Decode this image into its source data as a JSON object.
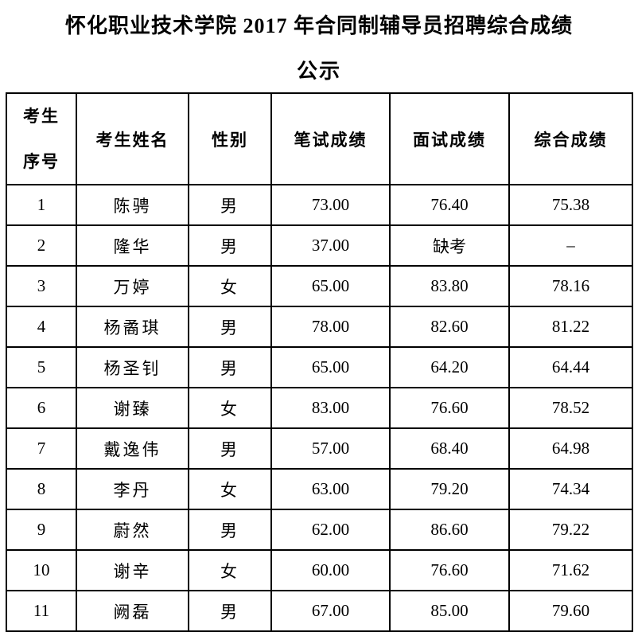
{
  "page": {
    "title_line1": "怀化职业技术学院 2017 年合同制辅导员招聘综合成绩",
    "title_line2": "公示"
  },
  "table": {
    "headers": {
      "seq": "考生\n序号",
      "name": "考生姓名",
      "gender": "性别",
      "written": "笔试成绩",
      "interview": "面试成绩",
      "overall": "综合成绩"
    },
    "rows": [
      {
        "seq": "1",
        "name": "陈骋",
        "gender": "男",
        "written": "73.00",
        "interview": "76.40",
        "overall": "75.38"
      },
      {
        "seq": "2",
        "name": "隆华",
        "gender": "男",
        "written": "37.00",
        "interview": "缺考",
        "overall": "–"
      },
      {
        "seq": "3",
        "name": "万婷",
        "gender": "女",
        "written": "65.00",
        "interview": "83.80",
        "overall": "78.16"
      },
      {
        "seq": "4",
        "name": "杨矞琪",
        "gender": "男",
        "written": "78.00",
        "interview": "82.60",
        "overall": "81.22"
      },
      {
        "seq": "5",
        "name": "杨圣钊",
        "gender": "男",
        "written": "65.00",
        "interview": "64.20",
        "overall": "64.44"
      },
      {
        "seq": "6",
        "name": "谢臻",
        "gender": "女",
        "written": "83.00",
        "interview": "76.60",
        "overall": "78.52"
      },
      {
        "seq": "7",
        "name": "戴逸伟",
        "gender": "男",
        "written": "57.00",
        "interview": "68.40",
        "overall": "64.98"
      },
      {
        "seq": "8",
        "name": "李丹",
        "gender": "女",
        "written": "63.00",
        "interview": "79.20",
        "overall": "74.34"
      },
      {
        "seq": "9",
        "name": "蔚然",
        "gender": "男",
        "written": "62.00",
        "interview": "86.60",
        "overall": "79.22"
      },
      {
        "seq": "10",
        "name": "谢辛",
        "gender": "女",
        "written": "60.00",
        "interview": "76.60",
        "overall": "71.62"
      },
      {
        "seq": "11",
        "name": "阙磊",
        "gender": "男",
        "written": "67.00",
        "interview": "85.00",
        "overall": "79.60"
      }
    ]
  }
}
